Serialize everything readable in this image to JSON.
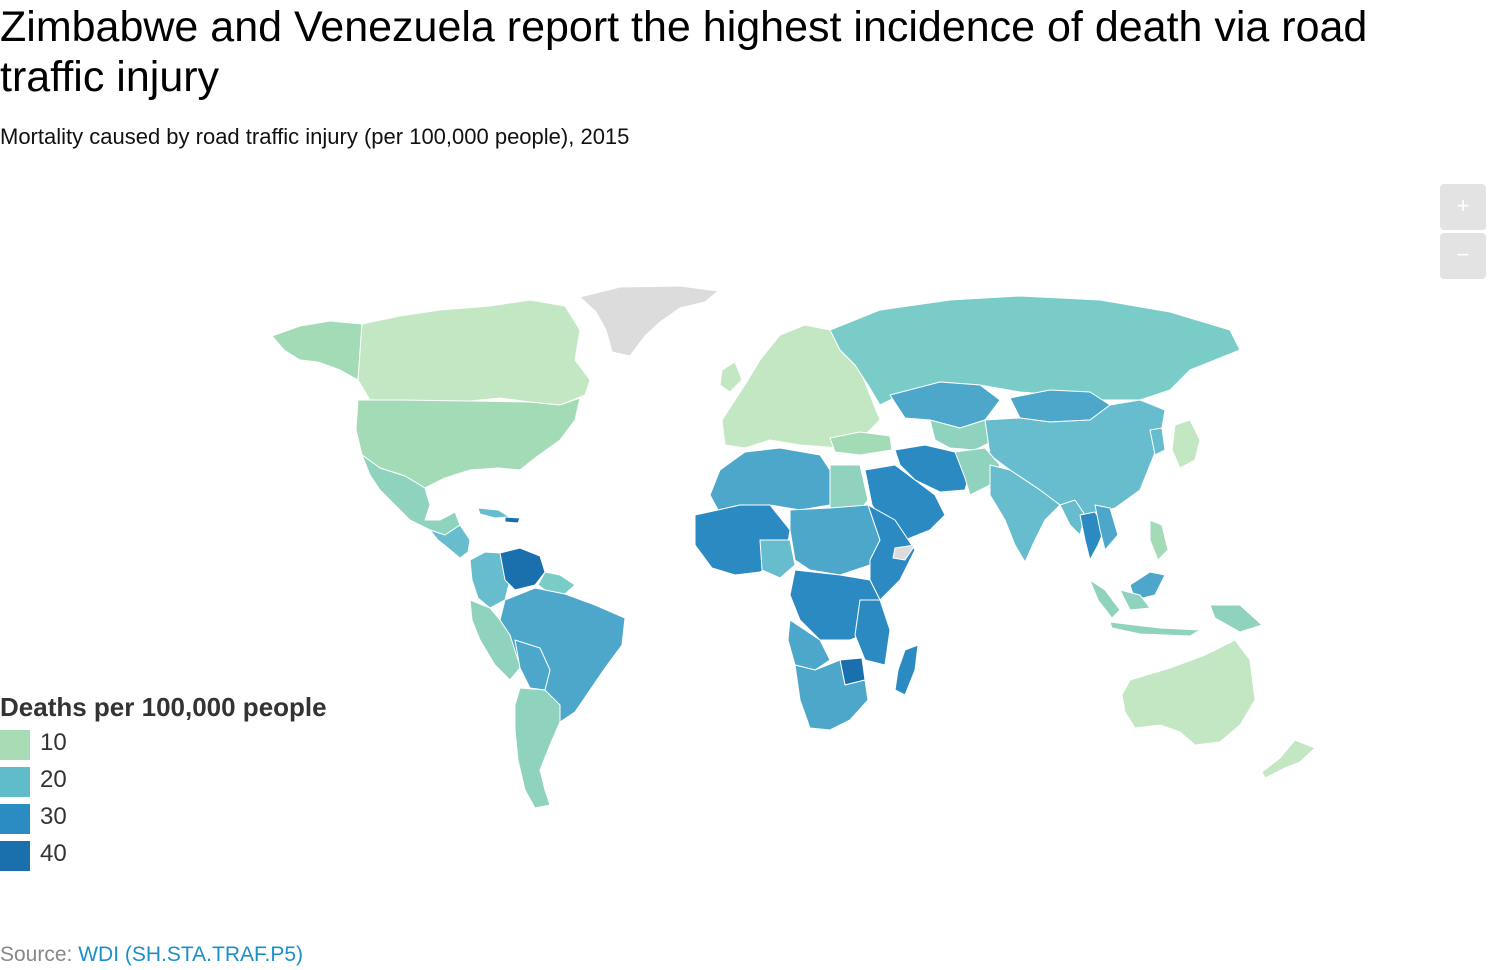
{
  "title": "Zimbabwe and Venezuela report the highest incidence of death via road traffic injury",
  "subtitle": "Mortality caused by road traffic injury (per 100,000 people), 2015",
  "zoom": {
    "in_label": "+",
    "out_label": "−"
  },
  "legend": {
    "title": "Deaths per 100,000 people",
    "items": [
      {
        "label": "10",
        "color": "#a8dcb5"
      },
      {
        "label": "20",
        "color": "#5fbcc8"
      },
      {
        "label": "30",
        "color": "#2b8cc4"
      },
      {
        "label": "40",
        "color": "#1a6fad"
      }
    ]
  },
  "source": {
    "prefix": "Source:",
    "link_text": "WDI (SH.STA.TRAF.P5)"
  },
  "colors": {
    "no_data": "#dcdcdc",
    "tier_low": "#c2e7c2",
    "tier_lowmid": "#a3dbb7",
    "tier_mid": "#8fd2bd",
    "tier_teal": "#7accc8",
    "tier_midhigh": "#67bccd",
    "tier_high": "#4ca7cb",
    "tier_vhigh": "#2c8ac3",
    "tier_max": "#1a6fad",
    "border": "#ffffff"
  }
}
